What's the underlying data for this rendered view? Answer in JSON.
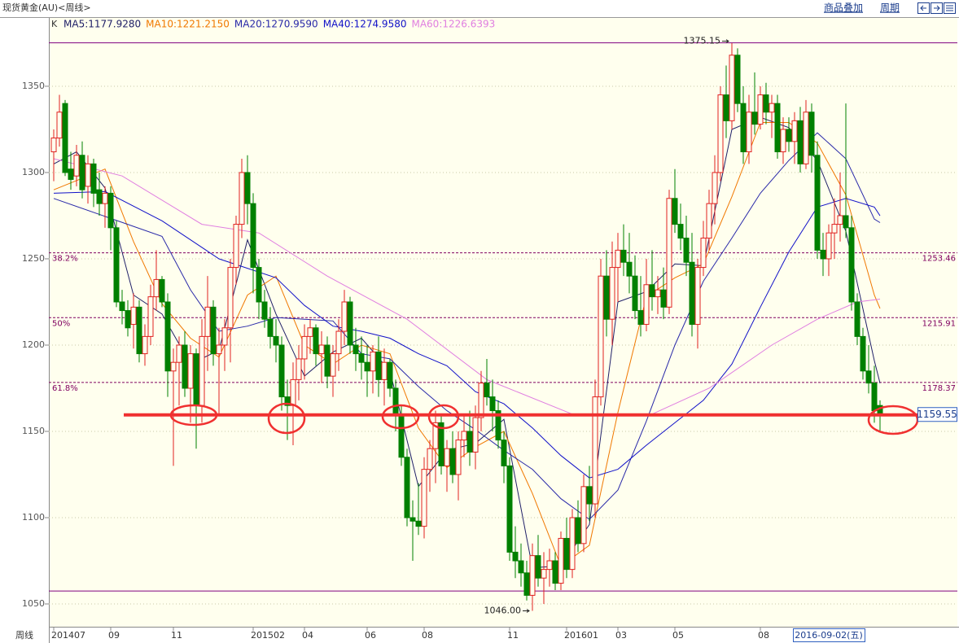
{
  "chart_data": {
    "type": "candlestick",
    "title": "现货黄金(AU)<周线>",
    "toolbar": [
      "商品叠加",
      "周期"
    ],
    "indicator": "K",
    "x_axis_label": "周线",
    "cursor_date": "2016-09-02(五)",
    "up_color": "#e02020",
    "down_color": "#008000",
    "categories": [
      "201407",
      null,
      null,
      null,
      null,
      null,
      null,
      null,
      null,
      null,
      "09",
      null,
      null,
      null,
      null,
      null,
      null,
      null,
      null,
      null,
      null,
      "11",
      null,
      null,
      null,
      null,
      null,
      null,
      null,
      null,
      null,
      null,
      null,
      null,
      null,
      "201502",
      null,
      null,
      null,
      null,
      null,
      null,
      null,
      null,
      "04",
      null,
      null,
      null,
      null,
      null,
      null,
      null,
      null,
      null,
      null,
      "06",
      null,
      null,
      null,
      null,
      null,
      null,
      null,
      null,
      null,
      "08",
      null,
      null,
      null,
      null,
      null,
      null,
      null,
      null,
      null,
      null,
      null,
      null,
      null,
      null,
      "11",
      null,
      null,
      null,
      null,
      null,
      null,
      null,
      null,
      null,
      "201601",
      null,
      null,
      null,
      null,
      null,
      null,
      null,
      null,
      "03",
      null,
      null,
      null,
      null,
      null,
      null,
      null,
      null,
      null,
      "05",
      null,
      null,
      null,
      null,
      null,
      null,
      null,
      null,
      null,
      null,
      null,
      null,
      null,
      null,
      "08",
      null,
      null,
      null,
      null,
      null,
      null,
      null,
      null,
      null,
      null,
      null,
      null,
      null,
      null,
      null,
      null,
      null,
      null,
      null,
      null,
      null
    ],
    "open": [
      1312,
      1320,
      1340,
      1302,
      1298,
      1310,
      1292,
      1305,
      1290,
      1282,
      1288,
      1268,
      1225,
      1220,
      1212,
      1222,
      1195,
      1205,
      1228,
      1238,
      1225,
      1185,
      1190,
      1200,
      1175,
      1195,
      1165,
      1205,
      1222,
      1195,
      1200,
      1210,
      1245,
      1270,
      1300,
      1282,
      1245,
      1225,
      1215,
      1205,
      1200,
      1170,
      1165,
      1180,
      1192,
      1205,
      1210,
      1195,
      1200,
      1182,
      1195,
      1208,
      1225,
      1200,
      1195,
      1190,
      1185,
      1196,
      1180,
      1190,
      1175,
      1160,
      1135,
      1100,
      1098,
      1095,
      1128,
      1140,
      1155,
      1130,
      1140,
      1125,
      1145,
      1150,
      1138,
      1158,
      1178,
      1170,
      1162,
      1145,
      1130,
      1080,
      1075,
      1068,
      1055,
      1078,
      1065,
      1070,
      1075,
      1062,
      1088,
      1070,
      1100,
      1085,
      1118,
      1108,
      1170,
      1240,
      1215,
      1245,
      1255,
      1248,
      1240,
      1220,
      1212,
      1235,
      1228,
      1232,
      1222,
      1285,
      1270,
      1262,
      1248,
      1212,
      1245,
      1262,
      1282,
      1300,
      1345,
      1330,
      1368,
      1340,
      1312,
      1335,
      1328,
      1345,
      1335,
      1340,
      1312,
      1325,
      1318,
      1330,
      1305,
      1335,
      1310,
      1255,
      1250,
      1265,
      1270,
      1275,
      1268,
      1225,
      1205,
      1185,
      1178,
      1165
    ],
    "high": [
      1325,
      1345,
      1342,
      1312,
      1316,
      1318,
      1310,
      1308,
      1300,
      1292,
      1292,
      1272,
      1232,
      1226,
      1230,
      1226,
      1212,
      1235,
      1255,
      1240,
      1230,
      1198,
      1205,
      1208,
      1200,
      1198,
      1215,
      1240,
      1226,
      1210,
      1215,
      1250,
      1275,
      1308,
      1310,
      1288,
      1250,
      1232,
      1222,
      1215,
      1205,
      1180,
      1190,
      1200,
      1212,
      1215,
      1212,
      1208,
      1205,
      1200,
      1215,
      1232,
      1228,
      1210,
      1205,
      1200,
      1200,
      1205,
      1198,
      1192,
      1180,
      1165,
      1140,
      1110,
      1120,
      1135,
      1145,
      1162,
      1160,
      1145,
      1150,
      1150,
      1160,
      1162,
      1165,
      1185,
      1192,
      1180,
      1168,
      1150,
      1135,
      1095,
      1085,
      1075,
      1085,
      1090,
      1080,
      1082,
      1080,
      1092,
      1100,
      1105,
      1110,
      1125,
      1130,
      1180,
      1250,
      1255,
      1260,
      1265,
      1270,
      1265,
      1252,
      1240,
      1250,
      1255,
      1240,
      1245,
      1290,
      1302,
      1282,
      1275,
      1265,
      1250,
      1272,
      1290,
      1310,
      1350,
      1362,
      1375,
      1372,
      1350,
      1345,
      1358,
      1350,
      1352,
      1345,
      1345,
      1332,
      1332,
      1335,
      1338,
      1342,
      1340,
      1318,
      1265,
      1270,
      1285,
      1300,
      1340,
      1275,
      1230,
      1210,
      1200,
      1188,
      1168
    ],
    "low": [
      1295,
      1315,
      1298,
      1290,
      1292,
      1285,
      1282,
      1280,
      1275,
      1268,
      1255,
      1222,
      1212,
      1205,
      1198,
      1190,
      1188,
      1200,
      1220,
      1222,
      1170,
      1130,
      1165,
      1170,
      1155,
      1140,
      1155,
      1185,
      1188,
      1160,
      1185,
      1190,
      1235,
      1262,
      1270,
      1230,
      1215,
      1210,
      1198,
      1190,
      1162,
      1145,
      1142,
      1168,
      1180,
      1195,
      1188,
      1178,
      1175,
      1170,
      1185,
      1200,
      1195,
      1185,
      1180,
      1170,
      1172,
      1170,
      1165,
      1170,
      1150,
      1130,
      1095,
      1075,
      1090,
      1088,
      1115,
      1120,
      1125,
      1115,
      1120,
      1110,
      1135,
      1130,
      1128,
      1150,
      1165,
      1150,
      1140,
      1120,
      1075,
      1065,
      1060,
      1052,
      1046,
      1060,
      1050,
      1060,
      1058,
      1058,
      1065,
      1065,
      1080,
      1080,
      1098,
      1100,
      1165,
      1205,
      1200,
      1225,
      1240,
      1230,
      1215,
      1205,
      1208,
      1220,
      1218,
      1215,
      1218,
      1265,
      1255,
      1240,
      1205,
      1198,
      1240,
      1255,
      1270,
      1295,
      1320,
      1325,
      1335,
      1305,
      1305,
      1322,
      1325,
      1328,
      1320,
      1308,
      1305,
      1312,
      1305,
      1300,
      1302,
      1300,
      1250,
      1240,
      1240,
      1250,
      1260,
      1262,
      1220,
      1200,
      1180,
      1172,
      1155,
      1150
    ],
    "close": [
      1320,
      1335,
      1300,
      1296,
      1310,
      1290,
      1305,
      1288,
      1282,
      1288,
      1268,
      1225,
      1220,
      1210,
      1222,
      1195,
      1205,
      1228,
      1238,
      1225,
      1185,
      1190,
      1200,
      1175,
      1195,
      1165,
      1205,
      1222,
      1195,
      1200,
      1210,
      1245,
      1270,
      1300,
      1282,
      1245,
      1225,
      1215,
      1205,
      1200,
      1170,
      1165,
      1180,
      1192,
      1205,
      1210,
      1195,
      1200,
      1182,
      1195,
      1208,
      1225,
      1200,
      1195,
      1190,
      1185,
      1196,
      1180,
      1190,
      1175,
      1160,
      1135,
      1100,
      1098,
      1095,
      1128,
      1140,
      1155,
      1130,
      1140,
      1125,
      1145,
      1150,
      1138,
      1158,
      1178,
      1170,
      1162,
      1145,
      1130,
      1080,
      1075,
      1068,
      1055,
      1078,
      1065,
      1070,
      1075,
      1062,
      1088,
      1070,
      1100,
      1085,
      1118,
      1108,
      1170,
      1240,
      1215,
      1245,
      1255,
      1248,
      1240,
      1220,
      1212,
      1235,
      1228,
      1232,
      1222,
      1285,
      1270,
      1262,
      1248,
      1212,
      1245,
      1262,
      1282,
      1300,
      1345,
      1330,
      1368,
      1340,
      1312,
      1335,
      1328,
      1345,
      1335,
      1340,
      1312,
      1325,
      1318,
      1330,
      1305,
      1335,
      1310,
      1255,
      1250,
      1265,
      1270,
      1275,
      1268,
      1225,
      1205,
      1185,
      1178,
      1162,
      1159.55
    ],
    "series": [
      {
        "label": "MA5:1177.9280",
        "color": "#202068",
        "x": [
          0,
          4,
          9,
          14,
          19,
          24,
          29,
          34,
          39,
          44,
          49,
          54,
          59,
          64,
          69,
          74,
          79,
          84,
          89,
          94,
          99,
          104,
          109,
          114,
          119,
          124,
          129,
          134,
          139,
          144,
          145
        ],
        "values": [
          1305,
          1312,
          1291,
          1229,
          1218,
          1189,
          1197,
          1261,
          1218,
          1182,
          1196,
          1204,
          1185,
          1118,
          1139,
          1143,
          1157,
          1071,
          1072,
          1096,
          1225,
          1231,
          1247,
          1246,
          1325,
          1332,
          1326,
          1307,
          1266,
          1191,
          1177.928
        ]
      },
      {
        "label": "MA10:1221.2150",
        "color": "#f07800",
        "x": [
          0,
          9,
          14,
          19,
          24,
          29,
          34,
          39,
          44,
          49,
          54,
          59,
          64,
          69,
          74,
          79,
          84,
          89,
          94,
          99,
          104,
          109,
          114,
          119,
          124,
          129,
          134,
          139,
          144,
          145
        ],
        "values": [
          1290,
          1302,
          1260,
          1224,
          1204,
          1193,
          1229,
          1240,
          1200,
          1189,
          1200,
          1195,
          1152,
          1129,
          1141,
          1150,
          1114,
          1072,
          1084,
          1161,
          1228,
          1239,
          1247,
          1286,
          1329,
          1329,
          1317,
          1287,
          1229,
          1221.215
        ]
      },
      {
        "label": "MA20:1270.9590",
        "color": "#2828a8",
        "x": [
          0,
          19,
          24,
          29,
          34,
          39,
          44,
          49,
          54,
          59,
          64,
          69,
          74,
          79,
          84,
          89,
          94,
          99,
          104,
          109,
          114,
          119,
          124,
          129,
          134,
          139,
          144,
          145
        ],
        "values": [
          1285,
          1263,
          1232,
          1208,
          1211,
          1216,
          1215,
          1214,
          1195,
          1192,
          1176,
          1162,
          1151,
          1139,
          1128,
          1111,
          1099,
          1116,
          1156,
          1200,
          1237,
          1262,
          1288,
          1307,
          1323,
          1308,
          1273,
          1270.959
        ]
      },
      {
        "label": "MA40:1274.9580",
        "color": "#1010c8",
        "x": [
          0,
          9,
          19,
          29,
          39,
          44,
          49,
          54,
          59,
          64,
          69,
          74,
          79,
          84,
          89,
          94,
          99,
          104,
          109,
          114,
          119,
          124,
          129,
          134,
          139,
          144,
          145
        ],
        "values": [
          1288,
          1289,
          1272,
          1250,
          1239,
          1223,
          1211,
          1208,
          1204,
          1195,
          1188,
          1173,
          1166,
          1152,
          1136,
          1123,
          1128,
          1142,
          1155,
          1168,
          1189,
          1222,
          1254,
          1280,
          1285,
          1280,
          1274.958
        ]
      },
      {
        "label": "MA60:1226.6393",
        "color": "#e07ee0",
        "x": [
          0,
          12,
          26,
          36,
          48,
          62,
          76,
          91,
          105,
          115,
          126,
          134,
          141,
          145
        ],
        "values": [
          1308,
          1298,
          1270,
          1265,
          1240,
          1215,
          1180,
          1160,
          1160,
          1175,
          1200,
          1215,
          1225,
          1226.6393
        ]
      }
    ],
    "fib_levels": [
      {
        "label": "38.2%",
        "value": 1253.46
      },
      {
        "label": "50%",
        "value": 1215.91
      },
      {
        "label": "61.8%",
        "value": 1178.37
      }
    ],
    "channel_lines": [
      1375.15,
      1057.5
    ],
    "max_label": 1375.15,
    "min_label": {
      "value": 1046,
      "label": "1046.00"
    },
    "last_price": 1159.55,
    "ylim": [
      1036.8,
      1389.6
    ],
    "yticks": [
      1050,
      1100,
      1150,
      1200,
      1250,
      1300,
      1350
    ],
    "grid": true
  }
}
